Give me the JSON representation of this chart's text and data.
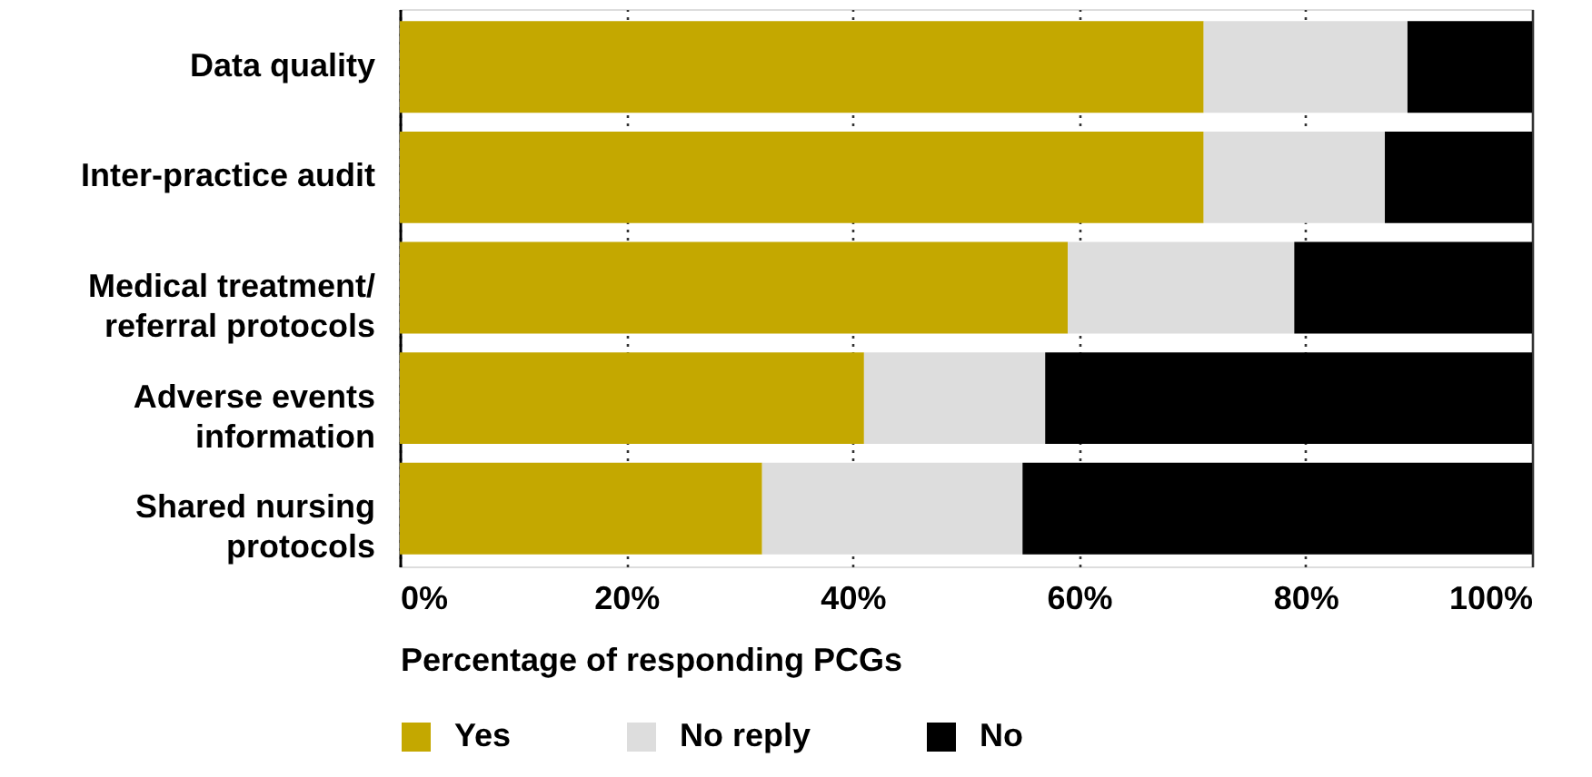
{
  "chart_data": {
    "type": "bar",
    "orientation": "horizontal",
    "stacked": true,
    "categories": [
      "Data quality",
      "Inter-practice audit",
      "Medical treatment/\nreferral protocols",
      "Adverse events\ninformation",
      "Shared nursing\nprotocols"
    ],
    "series": [
      {
        "name": "Yes",
        "color": "#c4a800",
        "values": [
          71,
          71,
          59,
          41,
          32
        ]
      },
      {
        "name": "No reply",
        "color": "#dddddd",
        "values": [
          18,
          16,
          20,
          16,
          23
        ]
      },
      {
        "name": "No",
        "color": "#000000",
        "values": [
          11,
          13,
          21,
          43,
          45
        ]
      }
    ],
    "xlabel": "Percentage of responding PCGs",
    "xlim": [
      0,
      100
    ],
    "xticks": [
      {
        "value": 0,
        "label": "0%"
      },
      {
        "value": 20,
        "label": "20%"
      },
      {
        "value": 40,
        "label": "40%"
      },
      {
        "value": 60,
        "label": "60%"
      },
      {
        "value": 80,
        "label": "80%"
      },
      {
        "value": 100,
        "label": "100%"
      }
    ],
    "grid": "x",
    "legend": "bottom"
  }
}
